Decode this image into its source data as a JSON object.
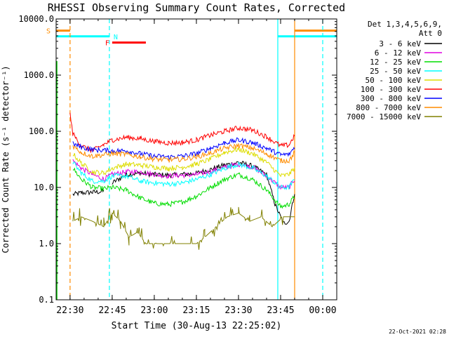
{
  "chart_data": {
    "type": "line",
    "title": "RHESSI Observing Summary Count Rates, Corrected",
    "xlabel": "Start Time (30-Aug-13 22:25:02)",
    "ylabel": "Corrected Count Rate (s⁻¹ detector⁻¹)",
    "yscale": "log",
    "ylim": [
      0.1,
      10000.0
    ],
    "yticks": [
      "10000.0",
      "1000.0",
      "100.0",
      "10.0",
      "1.0",
      "0.1"
    ],
    "xlim": [
      "22:25:02",
      "00:05:00"
    ],
    "xticks": [
      "22:30",
      "22:45",
      "23:00",
      "23:15",
      "23:30",
      "23:45",
      "00:00"
    ],
    "legend_header": [
      "Det 1,3,4,5,6,9,",
      "Att 0"
    ],
    "legend_position": "right",
    "series": [
      {
        "name": "3 - 6 keV",
        "color": "#000000",
        "points": [
          [
            "22:31",
            7.5
          ],
          [
            "22:34",
            8
          ],
          [
            "22:38",
            8.2
          ],
          [
            "22:42",
            8.5
          ],
          [
            "22:44",
            null
          ],
          [
            "22:45",
            12
          ],
          [
            "22:50",
            17
          ],
          [
            "22:55",
            18
          ],
          [
            "23:00",
            17
          ],
          [
            "23:05",
            16.5
          ],
          [
            "23:10",
            17
          ],
          [
            "23:15",
            18
          ],
          [
            "23:20",
            21
          ],
          [
            "23:25",
            25
          ],
          [
            "23:30",
            28
          ],
          [
            "23:35",
            24
          ],
          [
            "23:40",
            17
          ],
          [
            "23:43",
            5
          ],
          [
            "23:46",
            2.3
          ],
          [
            "23:48",
            2.5
          ],
          [
            "23:50",
            8
          ]
        ]
      },
      {
        "name": "6 - 12 keV",
        "color": "#e000e0",
        "points": [
          [
            "22:31",
            30
          ],
          [
            "22:34",
            22
          ],
          [
            "22:38",
            17
          ],
          [
            "22:42",
            14
          ],
          [
            "22:45",
            17
          ],
          [
            "22:50",
            19
          ],
          [
            "22:55",
            19
          ],
          [
            "23:00",
            17
          ],
          [
            "23:05",
            16
          ],
          [
            "23:10",
            16.5
          ],
          [
            "23:15",
            17
          ],
          [
            "23:20",
            19
          ],
          [
            "23:25",
            23
          ],
          [
            "23:30",
            26
          ],
          [
            "23:35",
            23
          ],
          [
            "23:40",
            16
          ],
          [
            "23:45",
            10
          ],
          [
            "23:48",
            10
          ],
          [
            "23:50",
            14
          ]
        ]
      },
      {
        "name": "12 - 25 keV",
        "color": "#00dd00",
        "points": [
          [
            "22:31",
            22
          ],
          [
            "22:34",
            14
          ],
          [
            "22:38",
            10
          ],
          [
            "22:42",
            9.5
          ],
          [
            "22:45",
            10
          ],
          [
            "22:50",
            9
          ],
          [
            "22:55",
            6.5
          ],
          [
            "23:00",
            5.2
          ],
          [
            "23:05",
            5
          ],
          [
            "23:10",
            5.5
          ],
          [
            "23:15",
            7
          ],
          [
            "23:20",
            10
          ],
          [
            "23:25",
            14
          ],
          [
            "23:30",
            17
          ],
          [
            "23:35",
            14
          ],
          [
            "23:40",
            9
          ],
          [
            "23:45",
            4.5
          ],
          [
            "23:48",
            5
          ],
          [
            "23:50",
            7
          ]
        ]
      },
      {
        "name": "25 - 50 keV",
        "color": "#00ffff",
        "points": [
          [
            "22:31",
            28
          ],
          [
            "22:34",
            18
          ],
          [
            "22:38",
            13
          ],
          [
            "22:42",
            13
          ],
          [
            "22:45",
            16
          ],
          [
            "22:50",
            16
          ],
          [
            "22:55",
            13
          ],
          [
            "23:00",
            12
          ],
          [
            "23:05",
            11.5
          ],
          [
            "23:10",
            12
          ],
          [
            "23:15",
            14
          ],
          [
            "23:20",
            17
          ],
          [
            "23:25",
            22
          ],
          [
            "23:30",
            26
          ],
          [
            "23:35",
            22
          ],
          [
            "23:40",
            16
          ],
          [
            "23:45",
            10
          ],
          [
            "23:48",
            10
          ],
          [
            "23:50",
            14
          ]
        ]
      },
      {
        "name": "50 - 100 keV",
        "color": "#dddd00",
        "points": [
          [
            "22:31",
            40
          ],
          [
            "22:34",
            27
          ],
          [
            "22:38",
            19
          ],
          [
            "22:42",
            18
          ],
          [
            "22:45",
            22
          ],
          [
            "22:50",
            26
          ],
          [
            "22:55",
            25
          ],
          [
            "23:00",
            23
          ],
          [
            "23:05",
            22
          ],
          [
            "23:10",
            23
          ],
          [
            "23:15",
            26
          ],
          [
            "23:20",
            32
          ],
          [
            "23:25",
            42
          ],
          [
            "23:30",
            48
          ],
          [
            "23:35",
            40
          ],
          [
            "23:40",
            28
          ],
          [
            "23:45",
            16
          ],
          [
            "23:48",
            17
          ],
          [
            "23:50",
            22
          ]
        ]
      },
      {
        "name": "100 - 300 keV",
        "color": "#ff0000",
        "points": [
          [
            "22:30",
            200
          ],
          [
            "22:31",
            90
          ],
          [
            "22:34",
            55
          ],
          [
            "22:38",
            45
          ],
          [
            "22:42",
            58
          ],
          [
            "22:45",
            70
          ],
          [
            "22:50",
            78
          ],
          [
            "22:55",
            74
          ],
          [
            "23:00",
            66
          ],
          [
            "23:05",
            62
          ],
          [
            "23:10",
            63
          ],
          [
            "23:15",
            70
          ],
          [
            "23:20",
            85
          ],
          [
            "23:25",
            100
          ],
          [
            "23:30",
            115
          ],
          [
            "23:35",
            105
          ],
          [
            "23:40",
            80
          ],
          [
            "23:45",
            55
          ],
          [
            "23:48",
            57
          ],
          [
            "23:50",
            85
          ]
        ]
      },
      {
        "name": "300 - 800 keV",
        "color": "#0000ff",
        "points": [
          [
            "22:31",
            60
          ],
          [
            "22:34",
            52
          ],
          [
            "22:38",
            47
          ],
          [
            "22:42",
            46
          ],
          [
            "22:45",
            45
          ],
          [
            "22:50",
            45
          ],
          [
            "22:55",
            40
          ],
          [
            "23:00",
            36
          ],
          [
            "23:05",
            35
          ],
          [
            "23:10",
            36
          ],
          [
            "23:15",
            40
          ],
          [
            "23:20",
            50
          ],
          [
            "23:25",
            62
          ],
          [
            "23:30",
            70
          ],
          [
            "23:35",
            63
          ],
          [
            "23:40",
            50
          ],
          [
            "23:45",
            38
          ],
          [
            "23:48",
            39
          ],
          [
            "23:50",
            52
          ]
        ]
      },
      {
        "name": "800 - 7000 keV",
        "color": "#ff8c00",
        "points": [
          [
            "22:31",
            55
          ],
          [
            "22:34",
            42
          ],
          [
            "22:38",
            36
          ],
          [
            "22:42",
            38
          ],
          [
            "22:45",
            40
          ],
          [
            "22:50",
            39
          ],
          [
            "22:55",
            35
          ],
          [
            "23:00",
            32
          ],
          [
            "23:05",
            31
          ],
          [
            "23:10",
            32
          ],
          [
            "23:15",
            35
          ],
          [
            "23:20",
            41
          ],
          [
            "23:25",
            50
          ],
          [
            "23:30",
            56
          ],
          [
            "23:35",
            50
          ],
          [
            "23:40",
            40
          ],
          [
            "23:45",
            30
          ],
          [
            "23:48",
            30
          ],
          [
            "23:50",
            42
          ]
        ]
      },
      {
        "name": "7000 - 15000 keV",
        "color": "#808000",
        "points": [
          [
            "22:31",
            2.5
          ],
          [
            "22:34",
            3
          ],
          [
            "22:38",
            2.5
          ],
          [
            "22:42",
            2
          ],
          [
            "22:45",
            3.5
          ],
          [
            "22:48",
            2.5
          ],
          [
            "22:51",
            1.3
          ],
          [
            "22:54",
            1.6
          ],
          [
            "22:57",
            1
          ],
          [
            "23:05",
            1
          ],
          [
            "23:15",
            1
          ],
          [
            "23:18",
            1.3
          ],
          [
            "23:22",
            2
          ],
          [
            "23:26",
            3
          ],
          [
            "23:30",
            3.5
          ],
          [
            "23:34",
            2.5
          ],
          [
            "23:38",
            3
          ],
          [
            "23:42",
            2
          ],
          [
            "23:46",
            3
          ],
          [
            "23:50",
            3
          ]
        ]
      }
    ],
    "flag_bars": [
      {
        "label": "S",
        "color": "#ff8c00",
        "y": 6200,
        "spans": [
          [
            "22:25:02",
            "22:30"
          ],
          [
            "23:50",
            "00:05:00"
          ]
        ]
      },
      {
        "label": "N",
        "color": "#00ffff",
        "y": 4900,
        "spans": [
          [
            "22:25:02",
            "22:44"
          ],
          [
            "23:44",
            "00:05:00"
          ]
        ]
      },
      {
        "label": "F",
        "color": "#ff0000",
        "y": 3800,
        "spans": [
          [
            "22:45",
            "22:57"
          ]
        ]
      }
    ],
    "vertical_lines": [
      {
        "t": "22:30",
        "color": "#ff8c00",
        "style": "dashed"
      },
      {
        "t": "22:44",
        "color": "#00ffff",
        "style": "dashed"
      },
      {
        "t": "23:44",
        "color": "#00ffff",
        "style": "solid"
      },
      {
        "t": "23:50",
        "color": "#ff8c00",
        "style": "solid"
      },
      {
        "t": "00:00",
        "color": "#00ffff",
        "style": "dashed"
      }
    ],
    "footer_date": "22-Oct-2021 02:28"
  }
}
